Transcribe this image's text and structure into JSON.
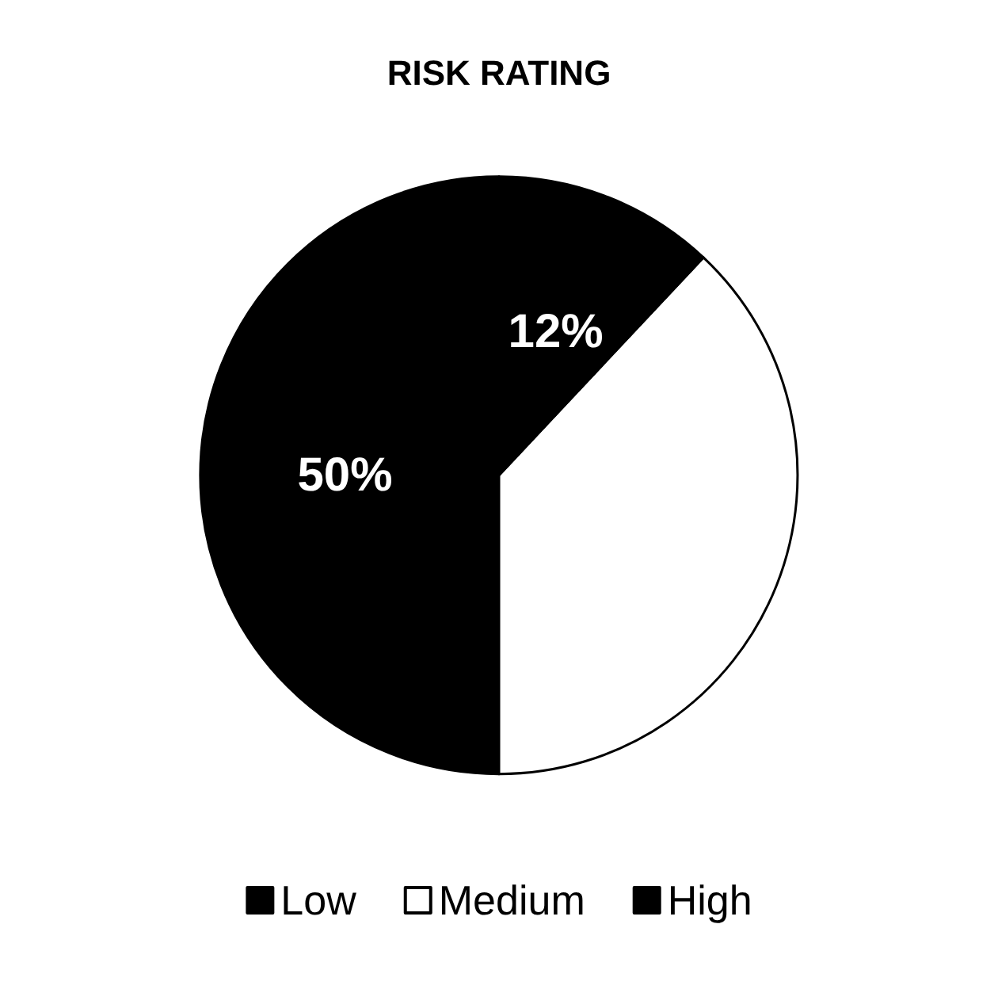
{
  "chart_data": {
    "type": "pie",
    "title": "RISK RATING",
    "categories": [
      "Low",
      "Medium",
      "High"
    ],
    "values": [
      50,
      38,
      12
    ],
    "colors": [
      "#000000",
      "#ffffff",
      "#000000"
    ],
    "value_labels": [
      "50%",
      null,
      "12%"
    ],
    "legend": "bottom"
  }
}
